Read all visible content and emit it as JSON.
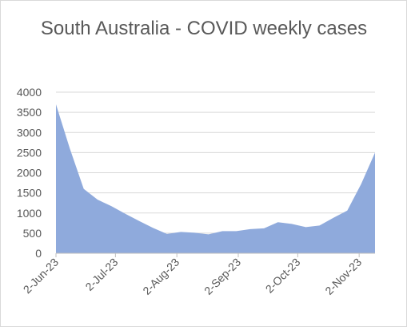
{
  "chart_data": {
    "type": "area",
    "title": "South Australia - COVID weekly cases",
    "xlabel": "",
    "ylabel": "",
    "ylim": [
      0,
      4000
    ],
    "yticks": [
      0,
      500,
      1000,
      1500,
      2000,
      2500,
      3000,
      3500,
      4000
    ],
    "xtick_labels": [
      "2-Jun-23",
      "2-Jul-23",
      "2-Aug-23",
      "2-Sep-23",
      "2-Oct-23",
      "2-Nov-23"
    ],
    "grid": true,
    "legend": "none",
    "color": "#8faadc",
    "x": [
      "2-Jun-23",
      "9-Jun-23",
      "16-Jun-23",
      "23-Jun-23",
      "30-Jun-23",
      "7-Jul-23",
      "14-Jul-23",
      "21-Jul-23",
      "28-Jul-23",
      "4-Aug-23",
      "11-Aug-23",
      "18-Aug-23",
      "25-Aug-23",
      "1-Sep-23",
      "8-Sep-23",
      "15-Sep-23",
      "22-Sep-23",
      "29-Sep-23",
      "6-Oct-23",
      "13-Oct-23",
      "20-Oct-23",
      "27-Oct-23",
      "3-Nov-23",
      "10-Nov-23"
    ],
    "values": [
      3700,
      2600,
      1600,
      1330,
      1170,
      980,
      800,
      630,
      480,
      530,
      510,
      470,
      550,
      550,
      600,
      620,
      770,
      730,
      650,
      690,
      880,
      1060,
      1720,
      2500
    ]
  }
}
